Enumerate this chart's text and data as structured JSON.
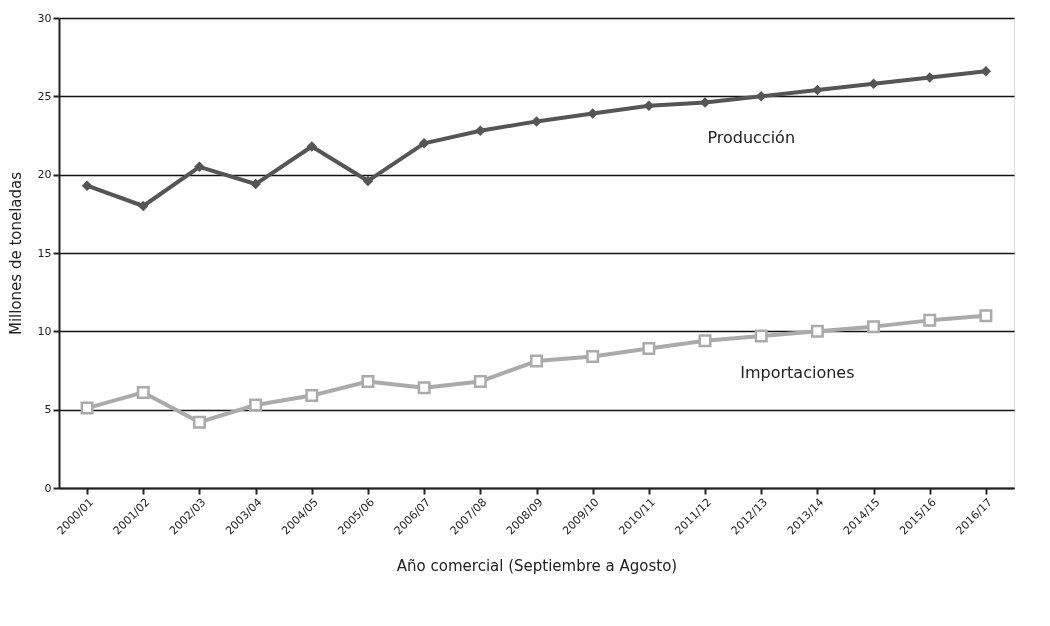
{
  "chart_data": {
    "type": "line",
    "xlabel": "Año comercial (Septiembre a Agosto)",
    "ylabel": "Millones de toneladas",
    "categories": [
      "2000/01",
      "2001/02",
      "2002/03",
      "2003/04",
      "2004/05",
      "2005/06",
      "2006/07",
      "2007/08",
      "2008/09",
      "2009/10",
      "2010/11",
      "2011/12",
      "2012/13",
      "2013/14",
      "2014/15",
      "2015/16",
      "2016/17"
    ],
    "series": [
      {
        "name": "Producción",
        "color": "#555555",
        "marker": "diamond",
        "values": [
          19.3,
          18.0,
          20.5,
          19.4,
          21.8,
          19.6,
          22.0,
          22.8,
          23.4,
          23.9,
          24.4,
          24.6,
          25.0,
          25.4,
          25.8,
          26.2,
          26.6
        ]
      },
      {
        "name": "Importaciones",
        "color": "#aaaaaa",
        "marker": "square",
        "values": [
          5.1,
          6.1,
          4.2,
          5.3,
          5.9,
          6.8,
          6.4,
          6.8,
          8.1,
          8.4,
          8.9,
          9.4,
          9.7,
          10.0,
          10.3,
          10.7,
          11.0
        ]
      }
    ],
    "ylim": [
      0,
      30
    ],
    "yticks": [
      0,
      5,
      10,
      15,
      20,
      25,
      30
    ],
    "grid": "y",
    "legend": false,
    "line_style": "solid"
  }
}
